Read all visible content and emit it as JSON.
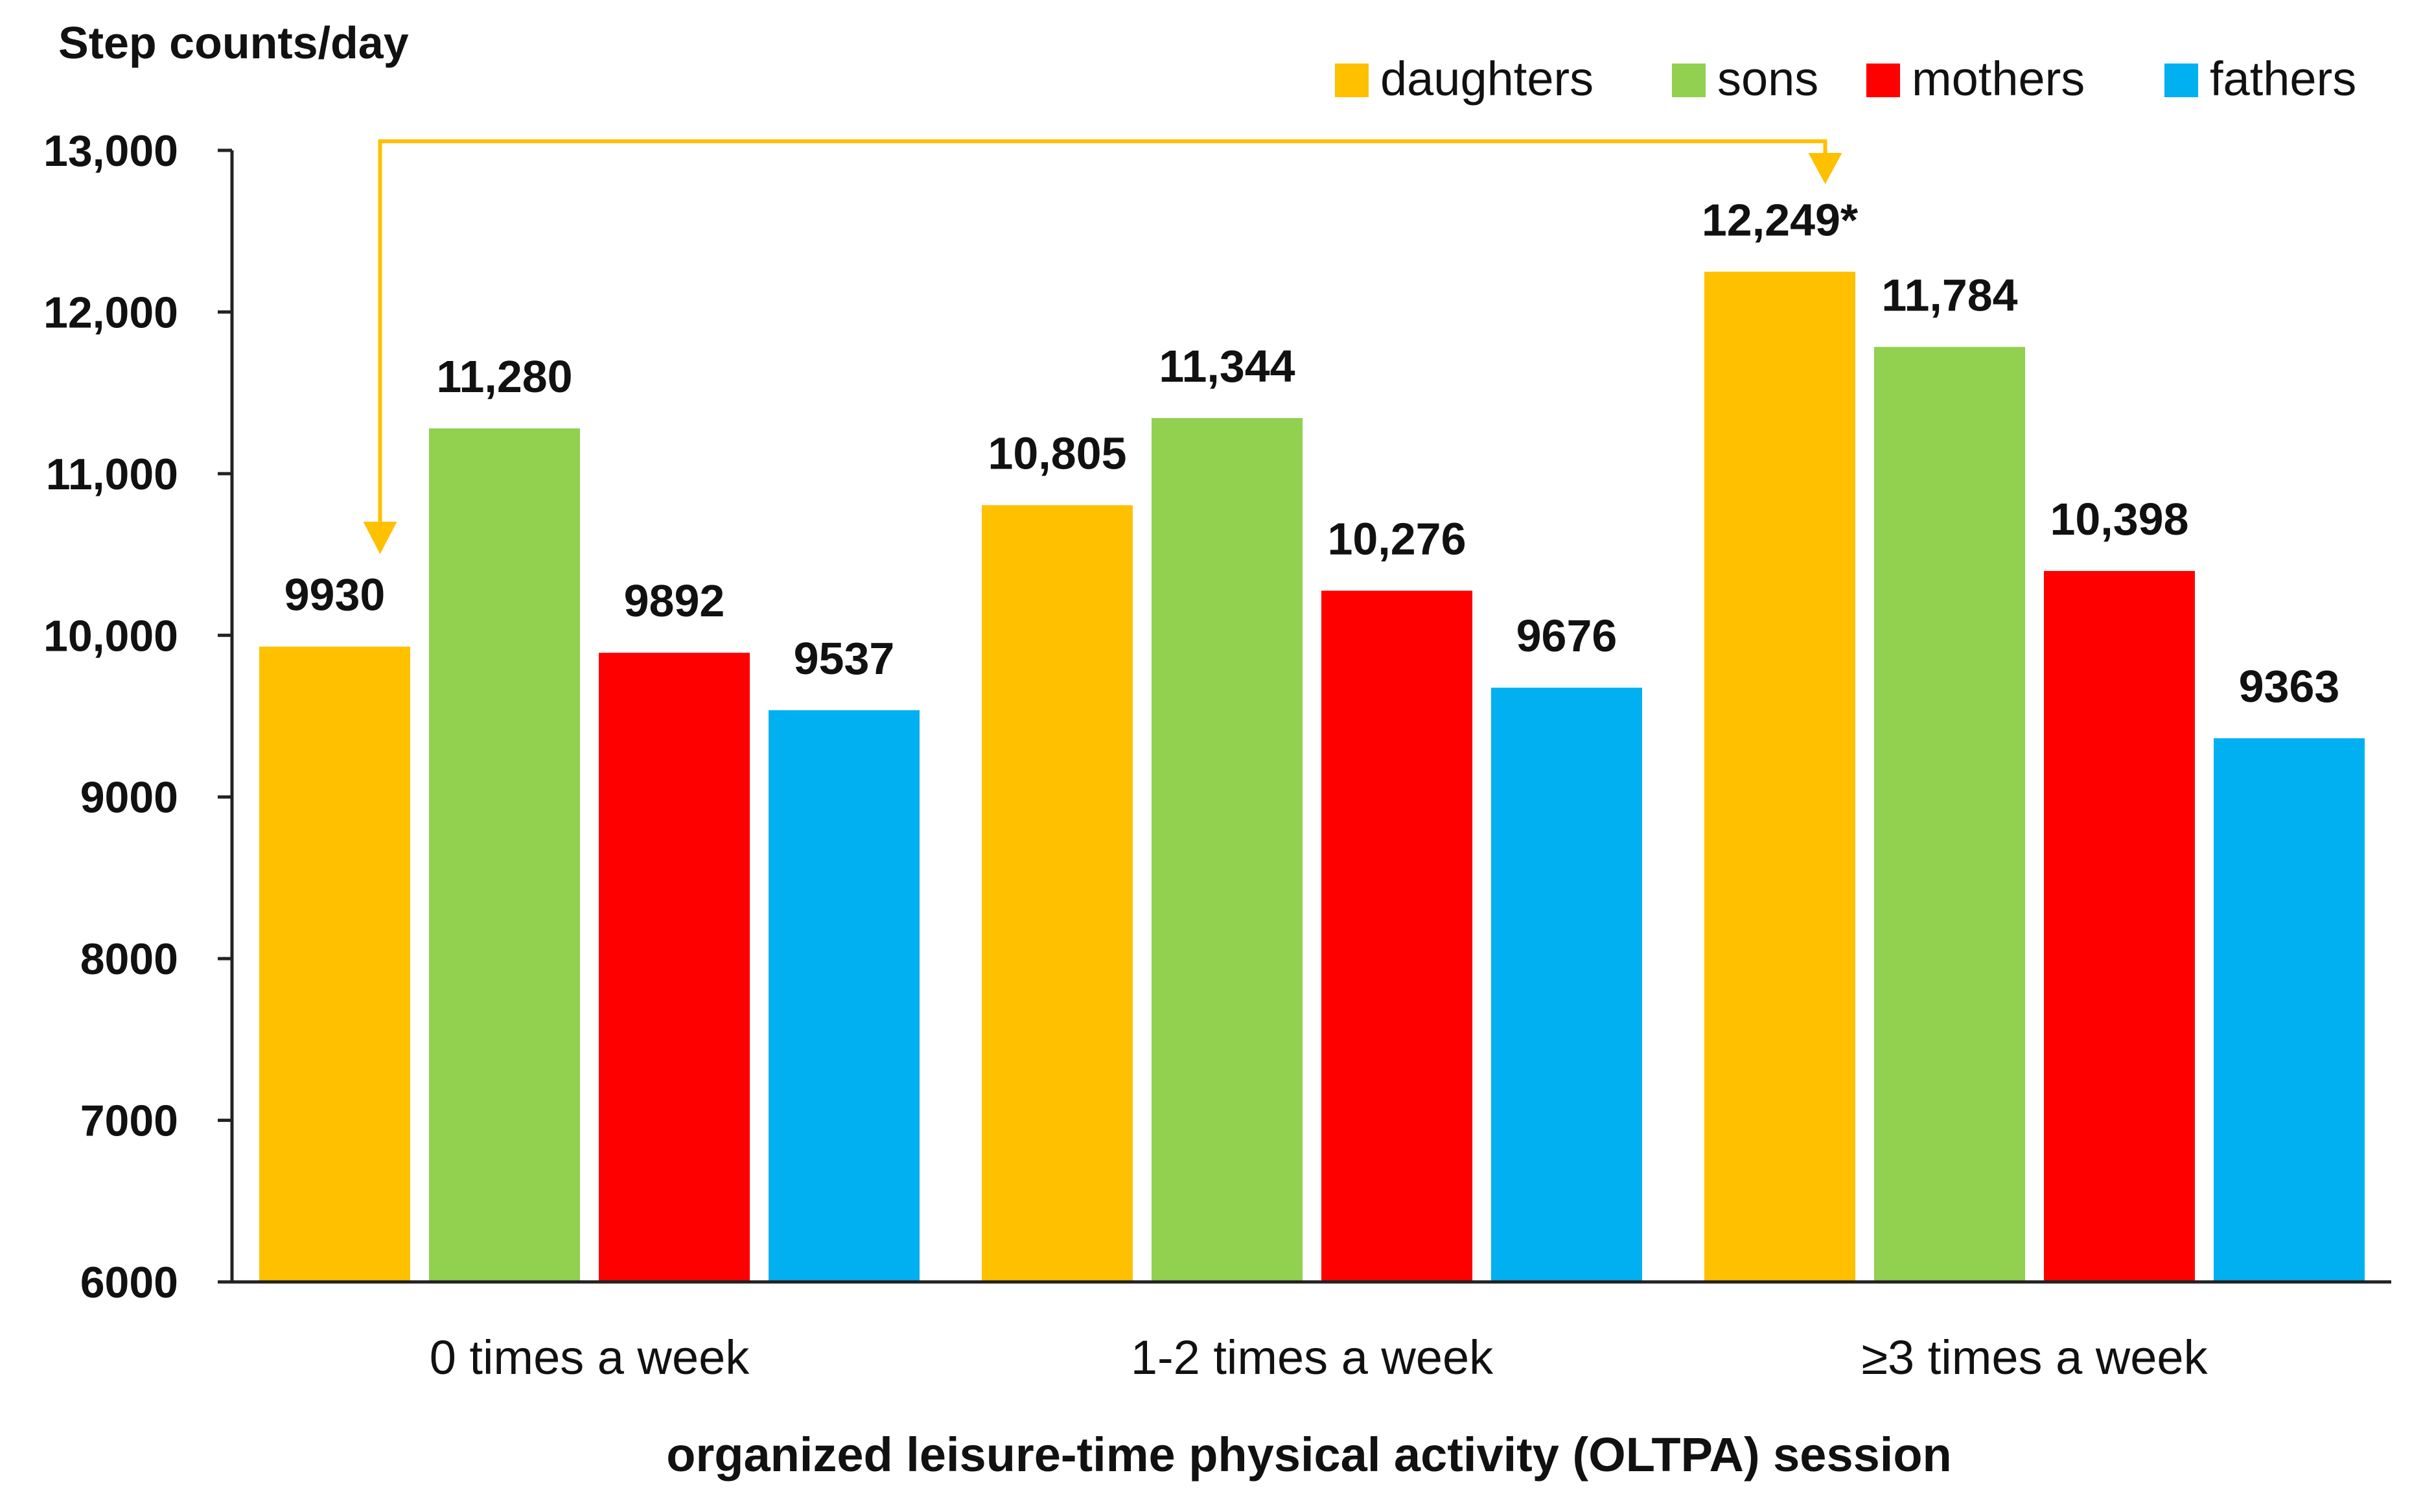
{
  "chart_data": {
    "type": "bar",
    "ylabel": "Step counts/day",
    "xlabel": "organized leisure-time physical activity (OLTPA) session",
    "categories": [
      "0 times a week",
      "1-2 times a week",
      "≥3 times a week"
    ],
    "ylim": [
      6000,
      13000
    ],
    "yticks": [
      {
        "value": 6000,
        "label": "6000"
      },
      {
        "value": 7000,
        "label": "7000"
      },
      {
        "value": 8000,
        "label": "8000"
      },
      {
        "value": 9000,
        "label": "9000"
      },
      {
        "value": 10000,
        "label": "10,000"
      },
      {
        "value": 11000,
        "label": "11,000"
      },
      {
        "value": 12000,
        "label": "12,000"
      },
      {
        "value": 13000,
        "label": "13,000"
      }
    ],
    "legend_position": "top-right",
    "series": [
      {
        "name": "daughters",
        "key": "daughters",
        "color": "#FFC000",
        "values": [
          9930,
          10805,
          12249
        ],
        "labels": [
          "9930",
          "10,805",
          "12,249*"
        ]
      },
      {
        "name": "sons",
        "key": "sons",
        "color": "#92D050",
        "values": [
          11280,
          11344,
          11784
        ],
        "labels": [
          "11,280",
          "11,344",
          "11,784"
        ]
      },
      {
        "name": "mothers",
        "key": "mothers",
        "color": "#FF0000",
        "values": [
          9892,
          10276,
          10398
        ],
        "labels": [
          "9892",
          "10,276",
          "10,398"
        ]
      },
      {
        "name": "fathers",
        "key": "fathers",
        "color": "#00B0F0",
        "values": [
          9537,
          9676,
          9363
        ],
        "labels": [
          "9537",
          "9676",
          "9363"
        ]
      }
    ],
    "annotations": [
      {
        "type": "bracket-arrow",
        "series": "daughters",
        "from_category": 0,
        "to_category": 2,
        "color": "#FFC000"
      }
    ]
  }
}
